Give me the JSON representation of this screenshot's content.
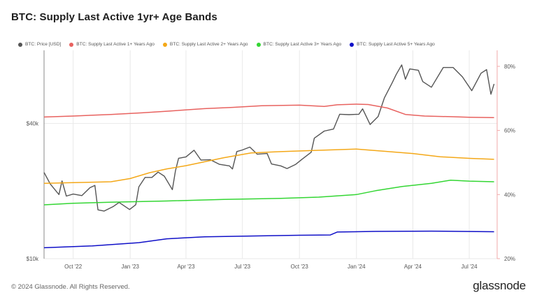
{
  "title": "BTC: Supply Last Active 1yr+ Age Bands",
  "footer": {
    "copyright": "© 2024 Glassnode. All Rights Reserved.",
    "brand": "glassnode"
  },
  "colors": {
    "price": "#555555",
    "y1": "#e8625f",
    "y2": "#f4a818",
    "y3": "#33d633",
    "y5": "#1010c8",
    "grid": "#e9e9e9",
    "right_axis": "#f2a9a9"
  },
  "chart_data": {
    "type": "line",
    "title": "BTC: Supply Last Active 1yr+ Age Bands",
    "x_ticks": [
      "Oct '22",
      "Jan '23",
      "Apr '23",
      "Jul '23",
      "Oct '23",
      "Jan '24",
      "Apr '24",
      "Jul '24"
    ],
    "x_range": [
      "2022-08-15",
      "2024-08-15"
    ],
    "left_axis": {
      "scale": "log",
      "ticks": [
        "$10k",
        "$40k"
      ],
      "tick_values": [
        10000,
        40000
      ],
      "range": [
        10000,
        80000
      ]
    },
    "right_axis": {
      "ticks": [
        "80%",
        "60%",
        "40%",
        "20%"
      ],
      "tick_values": [
        80,
        60,
        40,
        20
      ],
      "range": [
        20,
        85
      ]
    },
    "series": [
      {
        "key": "price",
        "name": "BTC: Price [USD]",
        "axis": "left",
        "points": [
          [
            "2022-08-15",
            24200
          ],
          [
            "2022-08-25",
            21500
          ],
          [
            "2022-09-08",
            19300
          ],
          [
            "2022-09-13",
            22200
          ],
          [
            "2022-09-20",
            19000
          ],
          [
            "2022-10-01",
            19400
          ],
          [
            "2022-10-15",
            19100
          ],
          [
            "2022-10-28",
            20700
          ],
          [
            "2022-11-05",
            21200
          ],
          [
            "2022-11-10",
            16500
          ],
          [
            "2022-11-20",
            16300
          ],
          [
            "2022-12-05",
            17100
          ],
          [
            "2022-12-14",
            17800
          ],
          [
            "2022-12-31",
            16550
          ],
          [
            "2023-01-10",
            17400
          ],
          [
            "2023-01-15",
            20900
          ],
          [
            "2023-01-25",
            23000
          ],
          [
            "2023-02-05",
            23000
          ],
          [
            "2023-02-15",
            24300
          ],
          [
            "2023-02-25",
            23300
          ],
          [
            "2023-03-10",
            20300
          ],
          [
            "2023-03-15",
            24600
          ],
          [
            "2023-03-20",
            28000
          ],
          [
            "2023-04-01",
            28400
          ],
          [
            "2023-04-14",
            30400
          ],
          [
            "2023-04-25",
            27500
          ],
          [
            "2023-05-10",
            27600
          ],
          [
            "2023-05-25",
            26300
          ],
          [
            "2023-06-10",
            25900
          ],
          [
            "2023-06-15",
            25100
          ],
          [
            "2023-06-22",
            30000
          ],
          [
            "2023-07-01",
            30500
          ],
          [
            "2023-07-13",
            31400
          ],
          [
            "2023-07-25",
            29200
          ],
          [
            "2023-08-10",
            29400
          ],
          [
            "2023-08-17",
            26400
          ],
          [
            "2023-09-01",
            25900
          ],
          [
            "2023-09-11",
            25200
          ],
          [
            "2023-09-25",
            26300
          ],
          [
            "2023-10-05",
            27700
          ],
          [
            "2023-10-20",
            29800
          ],
          [
            "2023-10-25",
            34400
          ],
          [
            "2023-11-10",
            37000
          ],
          [
            "2023-11-25",
            37800
          ],
          [
            "2023-12-05",
            44000
          ],
          [
            "2023-12-20",
            43800
          ],
          [
            "2024-01-05",
            44000
          ],
          [
            "2024-01-11",
            46500
          ],
          [
            "2024-01-23",
            39600
          ],
          [
            "2024-02-05",
            43000
          ],
          [
            "2024-02-15",
            52000
          ],
          [
            "2024-02-28",
            61000
          ],
          [
            "2024-03-05",
            66000
          ],
          [
            "2024-03-14",
            73000
          ],
          [
            "2024-03-20",
            63000
          ],
          [
            "2024-03-27",
            70000
          ],
          [
            "2024-04-10",
            69000
          ],
          [
            "2024-04-17",
            61500
          ],
          [
            "2024-05-01",
            58000
          ],
          [
            "2024-05-20",
            71000
          ],
          [
            "2024-06-05",
            71000
          ],
          [
            "2024-06-20",
            64500
          ],
          [
            "2024-07-05",
            56000
          ],
          [
            "2024-07-20",
            67000
          ],
          [
            "2024-07-29",
            69500
          ],
          [
            "2024-08-05",
            54000
          ],
          [
            "2024-08-10",
            60000
          ]
        ]
      },
      {
        "key": "y1",
        "name": "BTC: Supply Last Active 1+ Years Ago",
        "axis": "right",
        "points": [
          [
            "2022-08-15",
            64.2
          ],
          [
            "2022-10-01",
            64.5
          ],
          [
            "2022-12-01",
            65.0
          ],
          [
            "2023-01-20",
            65.5
          ],
          [
            "2023-03-01",
            66.0
          ],
          [
            "2023-05-01",
            66.8
          ],
          [
            "2023-06-15",
            67.2
          ],
          [
            "2023-08-01",
            67.7
          ],
          [
            "2023-10-01",
            67.9
          ],
          [
            "2023-11-10",
            67.5
          ],
          [
            "2023-12-01",
            68.0
          ],
          [
            "2024-01-01",
            68.2
          ],
          [
            "2024-01-20",
            68.1
          ],
          [
            "2024-02-20",
            67.0
          ],
          [
            "2024-03-20",
            65.0
          ],
          [
            "2024-04-20",
            64.5
          ],
          [
            "2024-06-01",
            64.3
          ],
          [
            "2024-07-01",
            64.1
          ],
          [
            "2024-08-10",
            64.0
          ]
        ]
      },
      {
        "key": "y2",
        "name": "BTC: Supply Last Active 2+ Years Ago",
        "axis": "right",
        "points": [
          [
            "2022-08-15",
            43.5
          ],
          [
            "2022-10-01",
            43.7
          ],
          [
            "2022-12-01",
            44.0
          ],
          [
            "2023-01-01",
            45.0
          ],
          [
            "2023-02-01",
            46.8
          ],
          [
            "2023-03-01",
            48.0
          ],
          [
            "2023-04-01",
            49.0
          ],
          [
            "2023-06-01",
            51.5
          ],
          [
            "2023-07-15",
            53.0
          ],
          [
            "2023-09-01",
            53.4
          ],
          [
            "2023-11-01",
            53.8
          ],
          [
            "2024-01-01",
            54.2
          ],
          [
            "2024-02-15",
            53.5
          ],
          [
            "2024-04-01",
            52.8
          ],
          [
            "2024-05-15",
            51.8
          ],
          [
            "2024-07-01",
            51.3
          ],
          [
            "2024-08-10",
            51.0
          ]
        ]
      },
      {
        "key": "y3",
        "name": "BTC: Supply Last Active 3+ Years Ago",
        "axis": "right",
        "points": [
          [
            "2022-08-15",
            36.8
          ],
          [
            "2022-10-01",
            37.3
          ],
          [
            "2022-12-01",
            37.6
          ],
          [
            "2023-03-01",
            38.0
          ],
          [
            "2023-06-01",
            38.5
          ],
          [
            "2023-09-01",
            38.8
          ],
          [
            "2023-11-01",
            39.2
          ],
          [
            "2024-01-01",
            40.0
          ],
          [
            "2024-02-01",
            41.2
          ],
          [
            "2024-03-15",
            42.5
          ],
          [
            "2024-05-01",
            43.5
          ],
          [
            "2024-06-01",
            44.5
          ],
          [
            "2024-07-01",
            44.2
          ],
          [
            "2024-08-10",
            44.0
          ]
        ]
      },
      {
        "key": "y5",
        "name": "BTC: Supply Last Active 5+ Years Ago",
        "axis": "right",
        "points": [
          [
            "2022-08-15",
            23.4
          ],
          [
            "2022-11-01",
            24.0
          ],
          [
            "2023-01-15",
            25.0
          ],
          [
            "2023-03-01",
            26.2
          ],
          [
            "2023-05-01",
            26.8
          ],
          [
            "2023-08-01",
            27.1
          ],
          [
            "2023-10-01",
            27.3
          ],
          [
            "2023-11-20",
            27.4
          ],
          [
            "2023-12-01",
            28.3
          ],
          [
            "2024-02-01",
            28.5
          ],
          [
            "2024-05-01",
            28.6
          ],
          [
            "2024-06-15",
            28.5
          ],
          [
            "2024-08-10",
            28.4
          ]
        ]
      }
    ]
  }
}
